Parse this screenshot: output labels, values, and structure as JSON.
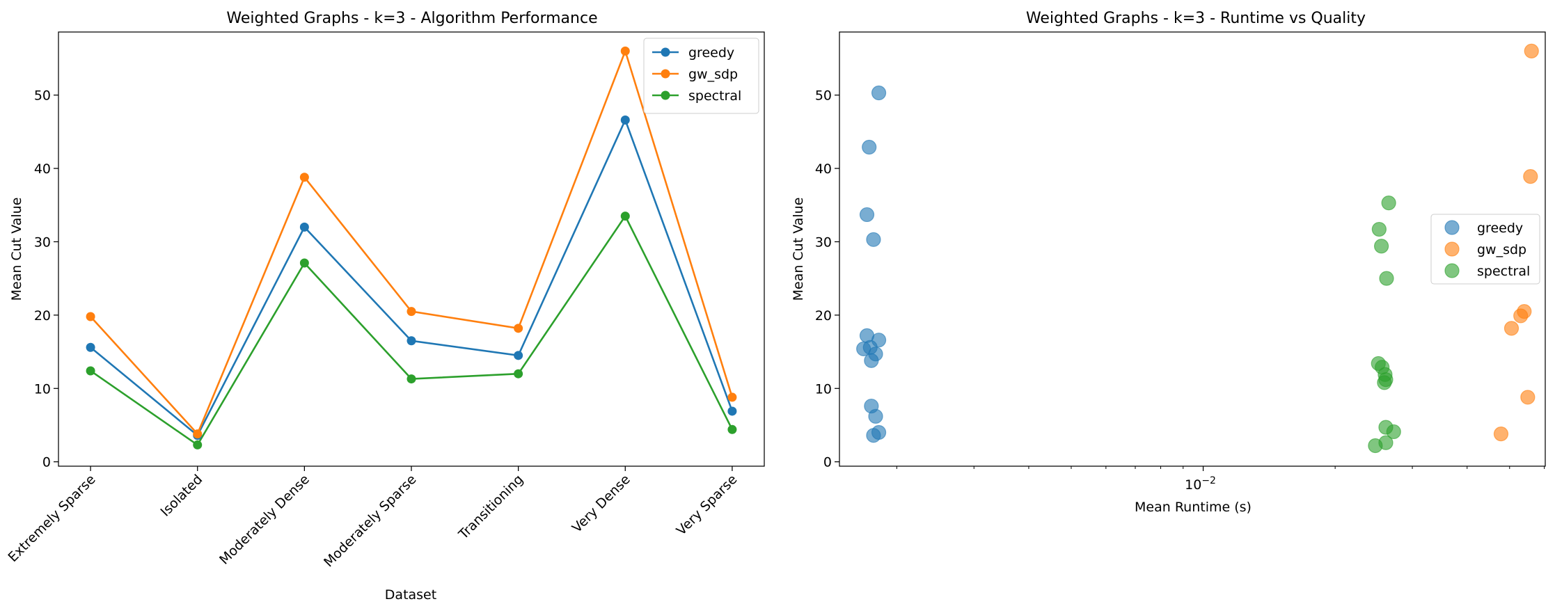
{
  "chart_data": [
    {
      "type": "line",
      "title": "Weighted Graphs - k=3 - Algorithm Performance",
      "xlabel": "Dataset",
      "ylabel": "Mean Cut Value",
      "categories": [
        "Extremely Sparse",
        "Isolated",
        "Moderately Dense",
        "Moderately Sparse",
        "Transitioning",
        "Very Dense",
        "Very Sparse"
      ],
      "ylim": [
        -0.6,
        58.6
      ],
      "yticks": [
        0,
        10,
        20,
        30,
        40,
        50
      ],
      "grid": false,
      "legend_position": "top-right",
      "series": [
        {
          "name": "greedy",
          "color": "#1f77b4",
          "values": [
            15.6,
            3.6,
            32.0,
            16.5,
            14.5,
            46.6,
            6.9
          ]
        },
        {
          "name": "gw_sdp",
          "color": "#ff7f0e",
          "values": [
            19.8,
            3.8,
            38.8,
            20.5,
            18.2,
            56.0,
            8.8
          ]
        },
        {
          "name": "spectral",
          "color": "#2ca02c",
          "values": [
            12.4,
            2.3,
            27.1,
            11.3,
            12.0,
            33.5,
            4.4
          ]
        }
      ]
    },
    {
      "type": "scatter",
      "title": "Weighted Graphs - k=3 - Runtime vs Quality",
      "xlabel": "Mean Runtime (s)",
      "ylabel": "Mean Cut Value",
      "xscale": "log",
      "xlim": [
        0.00148,
        0.0603
      ],
      "ylim": [
        -0.6,
        58.6
      ],
      "yticks": [
        0,
        10,
        20,
        30,
        40,
        50
      ],
      "xticks_major": [
        {
          "value": 0.01,
          "label_base": "10",
          "label_exp": "−2"
        }
      ],
      "xticks_minor": [
        0.002,
        0.003,
        0.004,
        0.005,
        0.006,
        0.007,
        0.008,
        0.009,
        0.02,
        0.03,
        0.04,
        0.05,
        0.06
      ],
      "grid": false,
      "legend_position": "center-right",
      "series": [
        {
          "name": "greedy",
          "color": "#1f77b4",
          "points": [
            [
              0.00182,
              50.3
            ],
            [
              0.00173,
              42.9
            ],
            [
              0.00171,
              33.7
            ],
            [
              0.00177,
              30.3
            ],
            [
              0.00171,
              17.2
            ],
            [
              0.00168,
              15.4
            ],
            [
              0.00174,
              15.6
            ],
            [
              0.00182,
              16.6
            ],
            [
              0.00179,
              14.7
            ],
            [
              0.00175,
              13.8
            ],
            [
              0.00175,
              7.6
            ],
            [
              0.00179,
              6.2
            ],
            [
              0.00182,
              4.0
            ],
            [
              0.00177,
              3.6
            ]
          ]
        },
        {
          "name": "gw_sdp",
          "color": "#ff7f0e",
          "points": [
            [
              0.0561,
              56.0
            ],
            [
              0.0558,
              38.9
            ],
            [
              0.054,
              20.5
            ],
            [
              0.053,
              19.9
            ],
            [
              0.0505,
              18.2
            ],
            [
              0.055,
              8.8
            ],
            [
              0.0478,
              3.8
            ]
          ]
        },
        {
          "name": "spectral",
          "color": "#2ca02c",
          "points": [
            [
              0.0265,
              35.3
            ],
            [
              0.0252,
              31.7
            ],
            [
              0.0255,
              29.4
            ],
            [
              0.0262,
              25.0
            ],
            [
              0.0251,
              13.4
            ],
            [
              0.0256,
              12.9
            ],
            [
              0.026,
              11.9
            ],
            [
              0.0261,
              11.2
            ],
            [
              0.0259,
              10.8
            ],
            [
              0.0261,
              4.7
            ],
            [
              0.0272,
              4.1
            ],
            [
              0.0261,
              2.6
            ],
            [
              0.0247,
              2.2
            ]
          ]
        }
      ]
    }
  ]
}
